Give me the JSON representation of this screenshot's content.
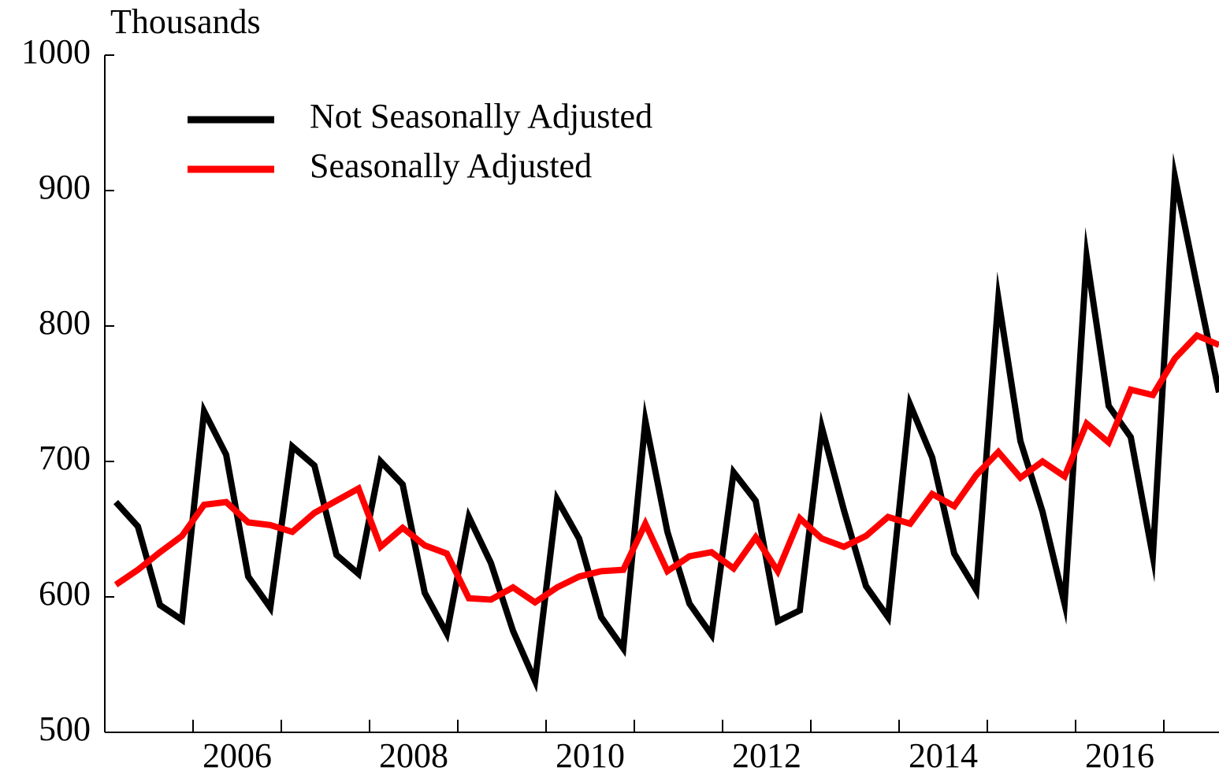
{
  "chart_data": {
    "type": "line",
    "y_axis_label": "Thousands",
    "x": [
      2005.125,
      2005.375,
      2005.625,
      2005.875,
      2006.125,
      2006.375,
      2006.625,
      2006.875,
      2007.125,
      2007.375,
      2007.625,
      2007.875,
      2008.125,
      2008.375,
      2008.625,
      2008.875,
      2009.125,
      2009.375,
      2009.625,
      2009.875,
      2010.125,
      2010.375,
      2010.625,
      2010.875,
      2011.125,
      2011.375,
      2011.625,
      2011.875,
      2012.125,
      2012.375,
      2012.625,
      2012.875,
      2013.125,
      2013.375,
      2013.625,
      2013.875,
      2014.125,
      2014.375,
      2014.625,
      2014.875,
      2015.125,
      2015.375,
      2015.625,
      2015.875,
      2016.125,
      2016.375,
      2016.625,
      2016.875,
      2017.125,
      2017.375,
      2017.625
    ],
    "series": [
      {
        "name": "Not Seasonally Adjusted",
        "color": "#000000",
        "values": [
          670,
          652,
          594,
          583,
          737,
          705,
          615,
          592,
          711,
          697,
          631,
          617,
          700,
          683,
          603,
          573,
          659,
          625,
          575,
          538,
          672,
          643,
          585,
          562,
          730,
          648,
          595,
          572,
          692,
          671,
          582,
          590,
          725,
          664,
          608,
          585,
          742,
          703,
          632,
          605,
          820,
          715,
          663,
          595,
          851,
          741,
          718,
          630,
          910,
          830,
          751
        ]
      },
      {
        "name": "Seasonally Adjusted",
        "color": "#ff0000",
        "values": [
          609,
          620,
          633,
          645,
          668,
          670,
          655,
          653,
          648,
          662,
          671,
          680,
          637,
          651,
          638,
          632,
          599,
          598,
          607,
          596,
          607,
          615,
          619,
          620,
          654,
          619,
          630,
          633,
          621,
          644,
          619,
          658,
          643,
          637,
          645,
          659,
          654,
          676,
          667,
          690,
          707,
          688,
          700,
          689,
          728,
          714,
          753,
          749,
          776,
          793,
          786
        ]
      }
    ],
    "xlim": [
      2005,
      2017.625
    ],
    "xticks": [
      {
        "value": 2006.5,
        "label": "2006"
      },
      {
        "value": 2008.5,
        "label": "2008"
      },
      {
        "value": 2010.5,
        "label": "2010"
      },
      {
        "value": 2012.5,
        "label": "2012"
      },
      {
        "value": 2014.5,
        "label": "2014"
      },
      {
        "value": 2016.5,
        "label": "2016"
      }
    ],
    "xminorticks": [
      2006,
      2007,
      2008,
      2009,
      2010,
      2011,
      2012,
      2013,
      2014,
      2015,
      2016,
      2017
    ],
    "ylim": [
      500,
      1000
    ],
    "yticks": [
      500,
      600,
      700,
      800,
      900,
      1000
    ],
    "grid": false,
    "legend": "upper left"
  }
}
